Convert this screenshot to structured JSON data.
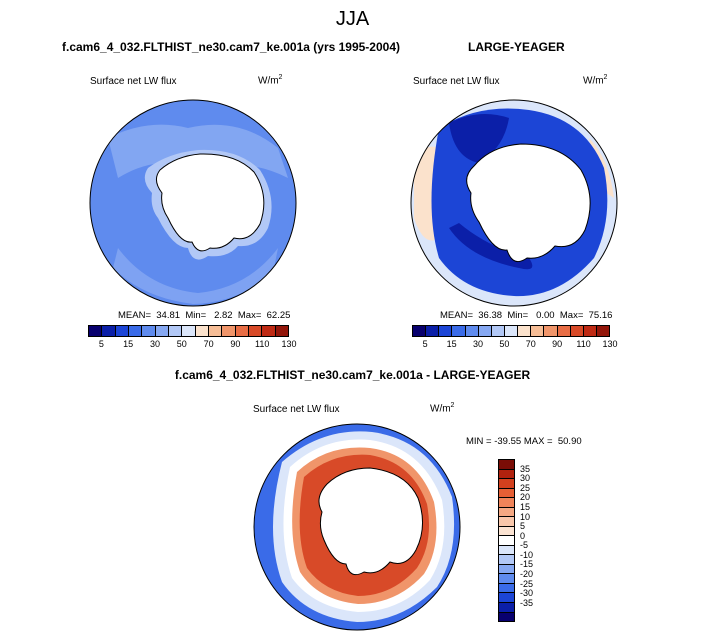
{
  "title": "JJA",
  "panels": {
    "model": {
      "title": "f.cam6_4_032.FLTHIST_ne30.cam7_ke.001a (yrs 1995-2004)",
      "variable": "Surface net LW flux",
      "units_base": "W/m",
      "units_exp": "2",
      "stats_mean": "MEAN=  34.81",
      "stats_min": "Min=   2.82",
      "stats_max": "Max=  62.25"
    },
    "obs": {
      "title": "LARGE-YEAGER",
      "variable": "Surface net LW flux",
      "units_base": "W/m",
      "units_exp": "2",
      "stats_mean": "MEAN=  36.38",
      "stats_min": "Min=   0.00",
      "stats_max": "Max=  75.16"
    },
    "diff": {
      "title": "f.cam6_4_032.FLTHIST_ne30.cam7_ke.001a - LARGE-YEAGER",
      "variable": "Surface net LW flux",
      "units_base": "W/m",
      "units_exp": "2",
      "stats": "MIN = -39.55 MAX =  50.90"
    }
  },
  "colorbar_abs": {
    "colors": [
      "#08006e",
      "#0b1fa8",
      "#1c45d6",
      "#3a6be8",
      "#5f8bee",
      "#86a8f2",
      "#b2c8f6",
      "#dbe6fa",
      "#fbe2cc",
      "#f6bd96",
      "#f0956a",
      "#e86d45",
      "#d84a28",
      "#bf2a14",
      "#93160a"
    ],
    "tick_labels": [
      "5",
      "15",
      "30",
      "50",
      "70",
      "90",
      "110",
      "130"
    ]
  },
  "colorbar_diff": {
    "colors": [
      "#7a0d06",
      "#b1220e",
      "#d3401e",
      "#e65f35",
      "#f0845a",
      "#f5a883",
      "#f9c7ab",
      "#fbe3d2",
      "#ffffff",
      "#dbe6fa",
      "#b2c8f6",
      "#86a8f2",
      "#5f8bee",
      "#3a6be8",
      "#1c45d6",
      "#0b1fa8",
      "#08006e"
    ],
    "tick_labels": [
      "35",
      "30",
      "25",
      "20",
      "15",
      "10",
      "5",
      "0",
      "-5",
      "-10",
      "-15",
      "-20",
      "-25",
      "-30",
      "-35"
    ]
  },
  "map_colors": {
    "land": "#ffffff",
    "model_base": "#5f8bee",
    "model_light": "#86a8f2",
    "model_lighter": "#b2c8f6",
    "obs_base": "#dbe6fa",
    "obs_ring": "#1c45d6",
    "obs_dark": "#0b1fa8",
    "obs_warm": "#fbe2cc",
    "diff_base": "#3a6be8",
    "diff_ring": "#d84a28",
    "diff_ring_light": "#f0956a",
    "diff_white": "#ffffff",
    "diff_pale": "#dbe6fa"
  }
}
